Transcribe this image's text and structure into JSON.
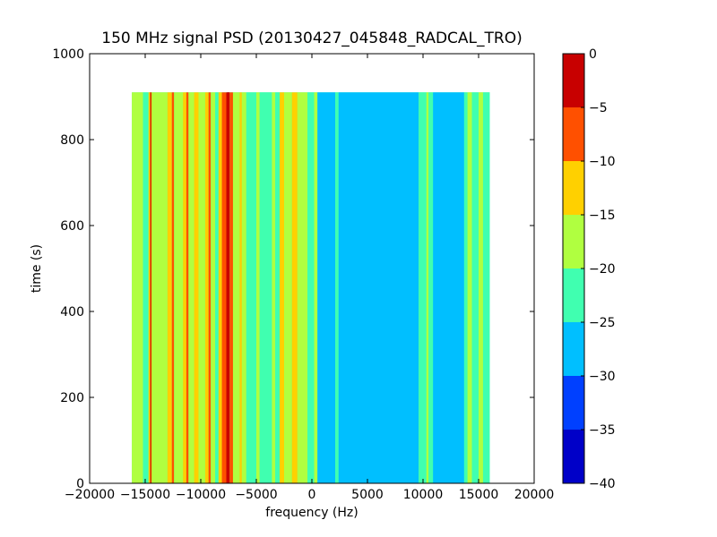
{
  "chart_data": {
    "type": "heatmap",
    "title": "150 MHz signal PSD (20130427_045848_RADCAL_TRO)",
    "xlabel": "frequency (Hz)",
    "ylabel": "time (s)",
    "xlim": [
      -20000,
      20000
    ],
    "ylim": [
      0,
      1000
    ],
    "xticks": [
      {
        "value": -20000,
        "label": "−20000"
      },
      {
        "value": -15000,
        "label": "−15000"
      },
      {
        "value": -10000,
        "label": "−10000"
      },
      {
        "value": -5000,
        "label": "−5000"
      },
      {
        "value": 0,
        "label": "0"
      },
      {
        "value": 5000,
        "label": "5000"
      },
      {
        "value": 10000,
        "label": "10000"
      },
      {
        "value": 15000,
        "label": "15000"
      },
      {
        "value": 20000,
        "label": "20000"
      }
    ],
    "yticks": [
      {
        "value": 0,
        "label": "0"
      },
      {
        "value": 200,
        "label": "200"
      },
      {
        "value": 400,
        "label": "400"
      },
      {
        "value": 600,
        "label": "600"
      },
      {
        "value": 800,
        "label": "800"
      },
      {
        "value": 1000,
        "label": "1000"
      }
    ],
    "data_extent": {
      "x": [
        -16200,
        16000
      ],
      "y": [
        0,
        910
      ]
    },
    "background_level": -25,
    "bands": [
      {
        "x0": -16200,
        "x1": -15200,
        "level": -20
      },
      {
        "x0": -15200,
        "x1": -14700,
        "level": -25
      },
      {
        "x0": -14700,
        "x1": -14400,
        "level": -15
      },
      {
        "x0": -14550,
        "x1": -14450,
        "level": -5
      },
      {
        "x0": -14400,
        "x1": -13000,
        "level": -20
      },
      {
        "x0": -13000,
        "x1": -12600,
        "level": -15
      },
      {
        "x0": -12600,
        "x1": -12400,
        "level": -10
      },
      {
        "x0": -12400,
        "x1": -11600,
        "level": -20
      },
      {
        "x0": -11600,
        "x1": -11300,
        "level": -15
      },
      {
        "x0": -11300,
        "x1": -11100,
        "level": -10
      },
      {
        "x0": -11100,
        "x1": -10600,
        "level": -20
      },
      {
        "x0": -10600,
        "x1": -10200,
        "level": -15
      },
      {
        "x0": -10200,
        "x1": -9600,
        "level": -20
      },
      {
        "x0": -9600,
        "x1": -9300,
        "level": -15
      },
      {
        "x0": -9300,
        "x1": -9100,
        "level": -10
      },
      {
        "x0": -9100,
        "x1": -8700,
        "level": -20
      },
      {
        "x0": -8700,
        "x1": -8400,
        "level": -25
      },
      {
        "x0": -8400,
        "x1": -8100,
        "level": -15
      },
      {
        "x0": -8100,
        "x1": -7700,
        "level": -10
      },
      {
        "x0": -7700,
        "x1": -7400,
        "level": -5
      },
      {
        "x0": -7600,
        "x1": -7450,
        "level": 0
      },
      {
        "x0": -7400,
        "x1": -7100,
        "level": -10
      },
      {
        "x0": -7100,
        "x1": -6500,
        "level": -20
      },
      {
        "x0": -6500,
        "x1": -6300,
        "level": -15
      },
      {
        "x0": -6300,
        "x1": -5900,
        "level": -20
      },
      {
        "x0": -5900,
        "x1": -5000,
        "level": -25
      },
      {
        "x0": -5000,
        "x1": -4700,
        "level": -20
      },
      {
        "x0": -4700,
        "x1": -3600,
        "level": -25
      },
      {
        "x0": -3600,
        "x1": -3300,
        "level": -20
      },
      {
        "x0": -3300,
        "x1": -2900,
        "level": -25
      },
      {
        "x0": -2900,
        "x1": -2500,
        "level": -15
      },
      {
        "x0": -2500,
        "x1": -1800,
        "level": -20
      },
      {
        "x0": -1800,
        "x1": -1300,
        "level": -15
      },
      {
        "x0": -1300,
        "x1": -400,
        "level": -20
      },
      {
        "x0": -400,
        "x1": 200,
        "level": -25
      },
      {
        "x0": 200,
        "x1": 500,
        "level": -20
      },
      {
        "x0": 500,
        "x1": 2100,
        "level": -30
      },
      {
        "x0": 2100,
        "x1": 2400,
        "level": -25
      },
      {
        "x0": 2400,
        "x1": 9600,
        "level": -30
      },
      {
        "x0": 9600,
        "x1": 10300,
        "level": -25
      },
      {
        "x0": 10300,
        "x1": 10500,
        "level": -20
      },
      {
        "x0": 10500,
        "x1": 10900,
        "level": -25
      },
      {
        "x0": 10900,
        "x1": 13700,
        "level": -30
      },
      {
        "x0": 13700,
        "x1": 14000,
        "level": -25
      },
      {
        "x0": 14000,
        "x1": 14400,
        "level": -20
      },
      {
        "x0": 14400,
        "x1": 15000,
        "level": -25
      },
      {
        "x0": 15000,
        "x1": 15400,
        "level": -20
      },
      {
        "x0": 15400,
        "x1": 16000,
        "level": -25
      }
    ],
    "colorbar": {
      "levels": [
        -40,
        -35,
        -30,
        -25,
        -20,
        -15,
        -10,
        -5,
        0
      ],
      "ticks": [
        {
          "value": 0,
          "label": "0"
        },
        {
          "value": -5,
          "label": "−5"
        },
        {
          "value": -10,
          "label": "−10"
        },
        {
          "value": -15,
          "label": "−15"
        },
        {
          "value": -20,
          "label": "−20"
        },
        {
          "value": -25,
          "label": "−25"
        },
        {
          "value": -30,
          "label": "−30"
        },
        {
          "value": -35,
          "label": "−35"
        },
        {
          "value": -40,
          "label": "−40"
        }
      ],
      "colors": [
        "#0000c8",
        "#0040ff",
        "#00bfff",
        "#40ffb0",
        "#b0ff40",
        "#ffd000",
        "#ff5000",
        "#c80000"
      ]
    }
  }
}
